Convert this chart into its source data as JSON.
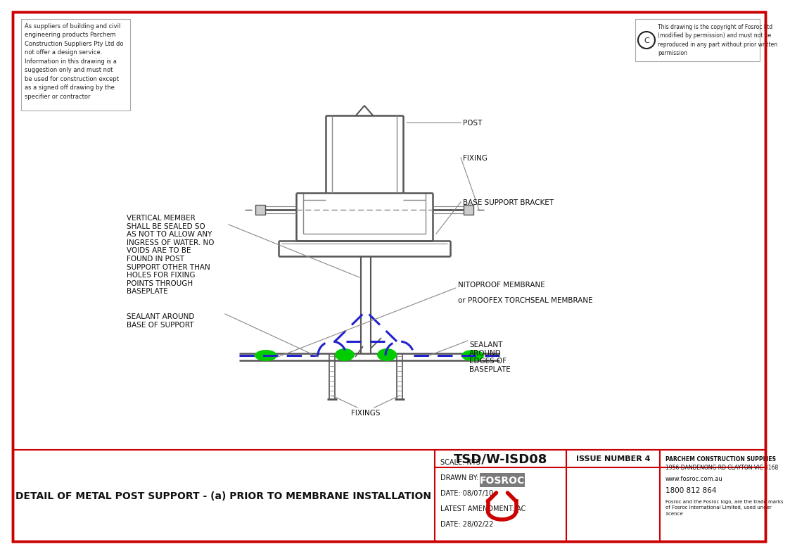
{
  "bg_color": "#ffffff",
  "border_color": "#cc0000",
  "line_color": "#888888",
  "dark_line": "#555555",
  "blue_dashed": "#2222cc",
  "green_fill": "#00cc00",
  "title": "DETAIL OF METAL POST SUPPORT - (a) PRIOR TO MEMBRANE INSTALLATION",
  "drawing_number": "TSD/W-ISD08",
  "issue": "ISSUE NUMBER 4",
  "scale": "SCALE: NTS",
  "drawn_by": "DRAWN BY: EC",
  "date": "DATE: 08/07/10",
  "latest_amendment": "LATEST AMENDMENT: AC",
  "date2": "DATE: 28/02/22",
  "disclaimer": "As suppliers of building and civil\nengineering products Parchem\nConstruction Suppliers Pty Ltd do\nnot offer a design service.\nInformation in this drawing is a\nsuggestion only and must not\nbe used for construction except\nas a signed off drawing by the\nspecifier or contractor",
  "copyright": "This drawing is the copyright of Fosroc Ltd\n(modified by permission) and must not be\nreproduced in any part without prior written\npermission",
  "label_post": "POST",
  "label_fixing": "FIXING",
  "label_base": "BASE SUPPORT BRACKET",
  "label_nitoproof_1": "NITOPROOF MEMBRANE",
  "label_nitoproof_2": "or PROOFEX TORCHSEAL MEMBRANE",
  "label_vertical": "VERTICAL MEMBER\nSHALL BE SEALED SO\nAS NOT TO ALLOW ANY\nINGRESS OF WATER. NO\nVOIDS ARE TO BE\nFOUND IN POST\nSUPPORT OTHER THAN\nHOLES FOR FIXING\nPOINTS THROUGH\nBASEPLATE",
  "label_sealant_base": "SEALANT AROUND\nBASE OF SUPPORT",
  "label_fixings": "FIXINGS",
  "label_sealant_edges": "SEALANT\nAROUND\nEDGES OF\nBASEPLATE",
  "fosroc_address_1": "PARCHEM CONSTRUCTION SUPPLIES",
  "fosroc_address_2": "1956 DANDENONG RD CLAYTON VIC 3168",
  "fosroc_address_3": "www.fosroc.com.au",
  "fosroc_address_4": "1800 812 864",
  "fosroc_address_5": "Fosroc and the Fosroc logo, are the trade marks\nof Fosroc International Limited, used under\nlicence"
}
